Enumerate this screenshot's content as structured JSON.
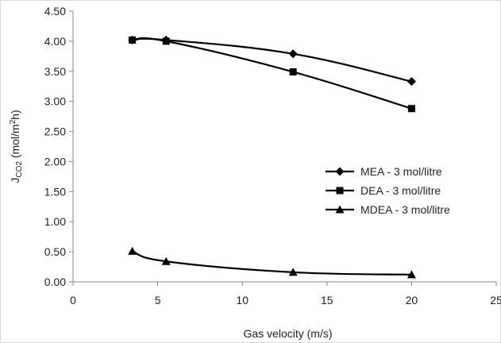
{
  "chart_data": {
    "type": "line",
    "title": "",
    "xlabel": "Gas velocity (m/s)",
    "ylabel": {
      "main": "J",
      "sub": "CO2",
      "rest": " (mol/m",
      "sup": "2",
      "end": "h)"
    },
    "xlim": [
      0,
      25
    ],
    "ylim": [
      0,
      4.5
    ],
    "xticks": [
      "0",
      "5",
      "10",
      "15",
      "20",
      "25"
    ],
    "yticks": [
      "0.00",
      "0.50",
      "1.00",
      "1.50",
      "2.00",
      "2.50",
      "3.00",
      "3.50",
      "4.00",
      "4.50"
    ],
    "grid": false,
    "legend_position": "center-right",
    "series": [
      {
        "name": "MEA - 3 mol/litre",
        "marker": "diamond",
        "color": "#000000",
        "x": [
          3.5,
          5.5,
          13,
          20
        ],
        "y": [
          4.02,
          4.02,
          3.79,
          3.33
        ]
      },
      {
        "name": "DEA - 3 mol/litre",
        "marker": "square",
        "color": "#000000",
        "x": [
          3.5,
          5.5,
          13,
          20
        ],
        "y": [
          4.02,
          4.0,
          3.49,
          2.88
        ]
      },
      {
        "name": "MDEA - 3 mol/litre",
        "marker": "triangle",
        "color": "#000000",
        "x": [
          3.5,
          5.5,
          13,
          20
        ],
        "y": [
          0.51,
          0.34,
          0.16,
          0.12
        ]
      }
    ]
  }
}
